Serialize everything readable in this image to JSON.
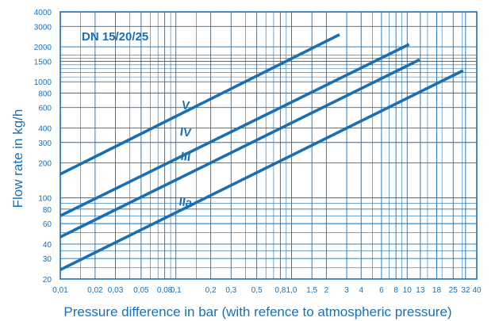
{
  "chart_data": {
    "type": "line",
    "title": "DN 15/20/25",
    "xlabel": "Pressure difference in bar (with refence to atmospheric pressure)",
    "ylabel": "Flow rate in kg/h",
    "xscale": "log",
    "yscale": "log",
    "xlim": [
      0.01,
      40
    ],
    "ylim": [
      20,
      4000
    ],
    "grid": true,
    "x_ticks": [
      {
        "v": 0.01,
        "label": "0,01"
      },
      {
        "v": 0.02,
        "label": "0,02"
      },
      {
        "v": 0.03,
        "label": "0,03"
      },
      {
        "v": 0.05,
        "label": "0,05"
      },
      {
        "v": 0.08,
        "label": "0,08"
      },
      {
        "v": 0.1,
        "label": "0,1"
      },
      {
        "v": 0.2,
        "label": "0,2"
      },
      {
        "v": 0.3,
        "label": "0,3"
      },
      {
        "v": 0.5,
        "label": "0,5"
      },
      {
        "v": 0.8,
        "label": "0,8"
      },
      {
        "v": 1,
        "label": "1,0"
      },
      {
        "v": 1.5,
        "label": "1,5"
      },
      {
        "v": 2,
        "label": "2"
      },
      {
        "v": 3,
        "label": "3"
      },
      {
        "v": 4,
        "label": "4"
      },
      {
        "v": 6,
        "label": "6"
      },
      {
        "v": 8,
        "label": "8"
      },
      {
        "v": 10,
        "label": "10"
      },
      {
        "v": 13,
        "label": "13"
      },
      {
        "v": 18,
        "label": "18"
      },
      {
        "v": 25,
        "label": "25"
      },
      {
        "v": 32,
        "label": "32"
      },
      {
        "v": 40,
        "label": "40"
      }
    ],
    "y_ticks": [
      {
        "v": 20,
        "label": "20"
      },
      {
        "v": 30,
        "label": "30"
      },
      {
        "v": 40,
        "label": "40"
      },
      {
        "v": 60,
        "label": "60"
      },
      {
        "v": 80,
        "label": "80"
      },
      {
        "v": 100,
        "label": "100"
      },
      {
        "v": 200,
        "label": "200"
      },
      {
        "v": 300,
        "label": "300"
      },
      {
        "v": 400,
        "label": "400"
      },
      {
        "v": 600,
        "label": "600"
      },
      {
        "v": 800,
        "label": "800"
      },
      {
        "v": 1000,
        "label": "1000"
      },
      {
        "v": 1500,
        "label": "1500"
      },
      {
        "v": 2000,
        "label": "2000"
      },
      {
        "v": 3000,
        "label": "3000"
      },
      {
        "v": 4000,
        "label": "4000"
      }
    ],
    "x_minor_grid": [
      0.015,
      0.04,
      0.06,
      0.07,
      0.09,
      0.15,
      0.4,
      0.6,
      0.7,
      0.9,
      5,
      7,
      9,
      15,
      20,
      30
    ],
    "y_minor_grid": [
      25,
      35,
      50,
      70,
      90,
      1100,
      1200,
      1300,
      1400,
      1600,
      1700
    ],
    "series": [
      {
        "name": "V",
        "x": [
          0.01,
          2.6
        ],
        "y": [
          160,
          2550
        ]
      },
      {
        "name": "IV",
        "x": [
          0.01,
          10.4
        ],
        "y": [
          70,
          2100
        ]
      },
      {
        "name": "III",
        "x": [
          0.01,
          12.8
        ],
        "y": [
          46,
          1550
        ]
      },
      {
        "name": "IIa",
        "x": [
          0.01,
          30.5
        ],
        "y": [
          24,
          1250
        ]
      }
    ],
    "series_label_at": [
      {
        "name": "V",
        "x": 0.12,
        "y": 580
      },
      {
        "name": "IV",
        "x": 0.12,
        "y": 340
      },
      {
        "name": "III",
        "x": 0.12,
        "y": 210
      },
      {
        "name": "IIa",
        "x": 0.12,
        "y": 85
      }
    ],
    "colors": {
      "line": "#1a6fb4",
      "grid": "#1a6fb4",
      "text": "#1a6fb4",
      "background": "#ffffff"
    }
  }
}
